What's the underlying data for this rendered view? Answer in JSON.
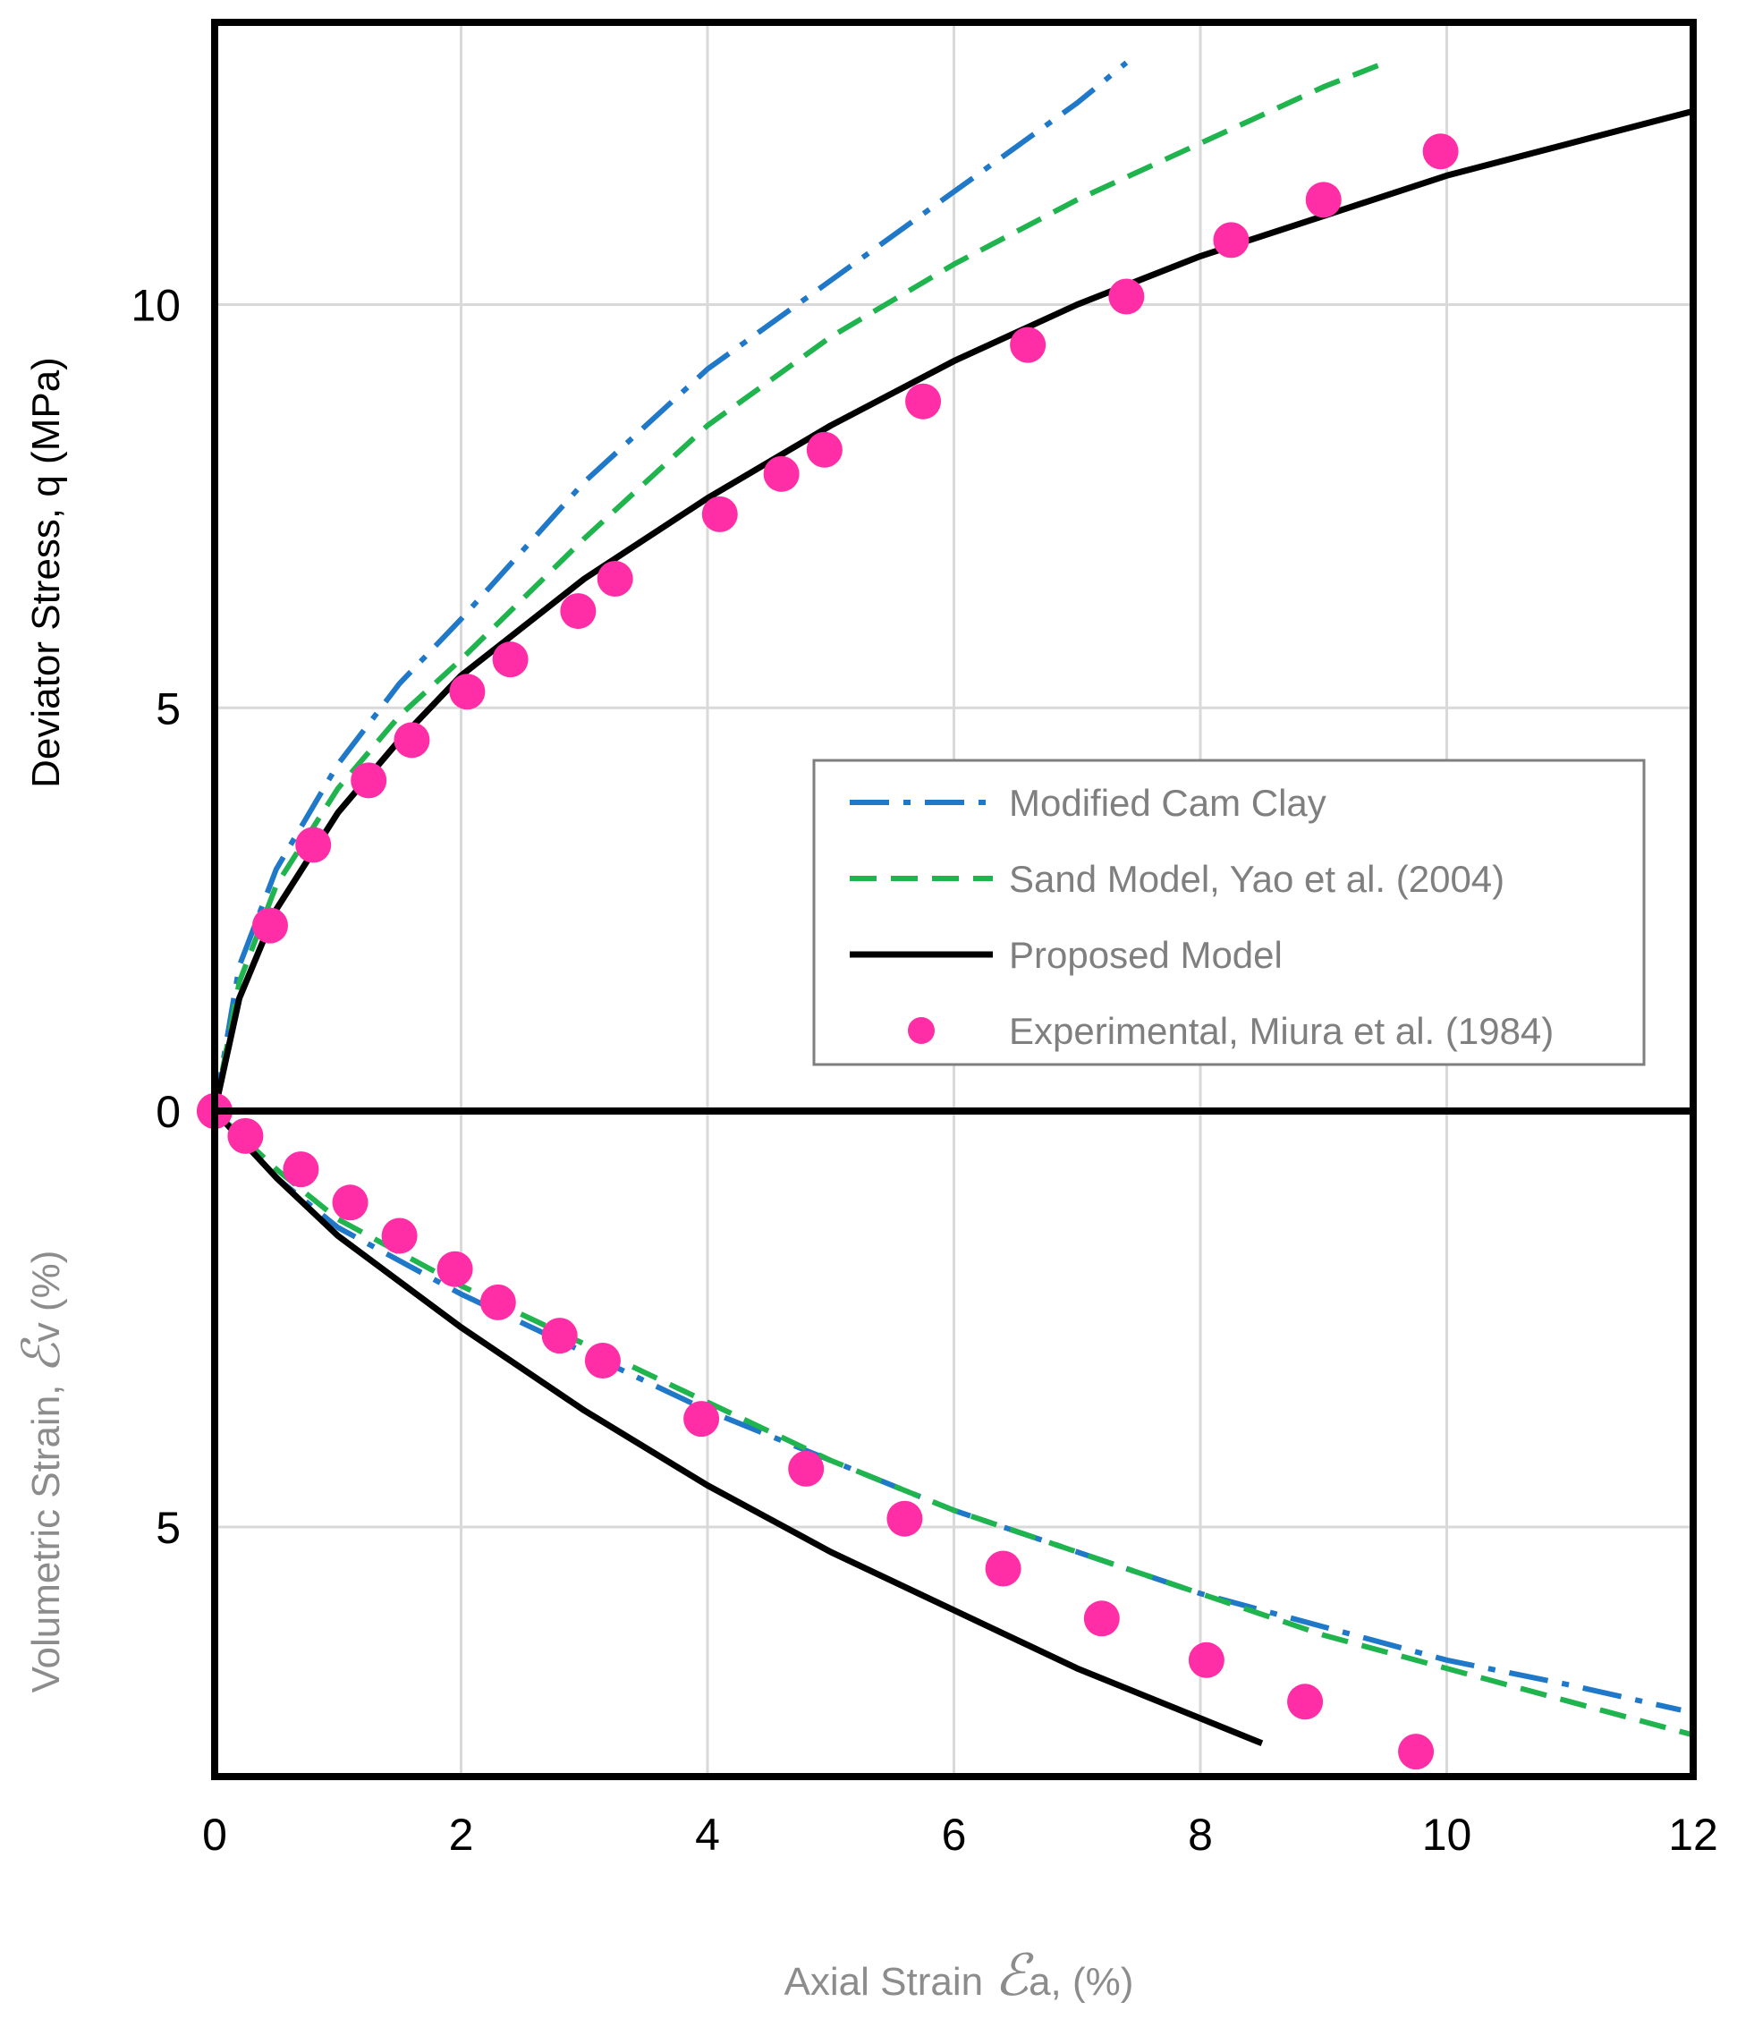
{
  "chart_data": {
    "type": "line",
    "title": "",
    "xlabel_prefix": "Axial Strain ",
    "xlabel_symbol": "ℰ",
    "xlabel_suffix": "a, (%)",
    "ylabel_top": "Deviator Stress, q (MPa)",
    "ylabel_bottom_prefix": "Volumetric Strain, ",
    "ylabel_bottom_symbol": "ℰ",
    "ylabel_bottom_suffix": "v (%)",
    "xlim": [
      0,
      12
    ],
    "top_ylim": [
      0,
      13.5
    ],
    "bottom_ylim": [
      0,
      8
    ],
    "grid": true,
    "legend_position": "center-right",
    "x_ticks": [
      "0",
      "2",
      "4",
      "6",
      "8",
      "10",
      "12"
    ],
    "x_tick_values": [
      0,
      2,
      4,
      6,
      8,
      10,
      12
    ],
    "top_y_ticks": [
      "0",
      "5",
      "10"
    ],
    "top_y_tick_values": [
      0,
      5,
      10
    ],
    "bottom_y_ticks": [
      "5"
    ],
    "bottom_y_tick_values": [
      5
    ],
    "colors": {
      "mcc": "#1f78c8",
      "sand": "#1fb44e",
      "proposed": "#000000",
      "experimental": "#ff2ea6",
      "grid": "#d9d9d9",
      "axis": "#000000",
      "label_gray": "#8c8c8c"
    },
    "legend": [
      {
        "key": "mcc",
        "label": "Modified Cam Clay",
        "style": "dash-dot"
      },
      {
        "key": "sand",
        "label": "Sand Model, Yao et al. (2004)",
        "style": "dashed"
      },
      {
        "key": "proposed",
        "label": "Proposed Model",
        "style": "solid"
      },
      {
        "key": "experimental",
        "label": "Experimental, Miura et al. (1984)",
        "style": "marker"
      }
    ],
    "deviator_stress": {
      "series": [
        {
          "key": "mcc",
          "name": "Modified Cam Clay",
          "x": [
            0,
            0.2,
            0.5,
            1.0,
            1.5,
            2.0,
            3.0,
            4.0,
            5.0,
            6.0,
            7.0,
            7.4
          ],
          "y": [
            0,
            1.8,
            3.0,
            4.3,
            5.3,
            6.1,
            7.8,
            9.2,
            10.3,
            11.4,
            12.5,
            13.0
          ]
        },
        {
          "key": "sand",
          "name": "Sand Model, Yao et al. (2004)",
          "x": [
            0,
            0.2,
            0.5,
            1.0,
            1.5,
            2.0,
            3.0,
            4.0,
            5.0,
            6.0,
            7.0,
            8.0,
            9.0,
            9.5
          ],
          "y": [
            0,
            1.6,
            2.8,
            4.0,
            4.9,
            5.6,
            7.1,
            8.5,
            9.6,
            10.5,
            11.3,
            12.0,
            12.7,
            13.0
          ]
        },
        {
          "key": "proposed",
          "name": "Proposed Model",
          "x": [
            0,
            0.2,
            0.5,
            1.0,
            1.5,
            2.0,
            3.0,
            4.0,
            5.0,
            6.0,
            7.0,
            8.0,
            9.0,
            10.0,
            11.0,
            12.0
          ],
          "y": [
            0,
            1.4,
            2.5,
            3.7,
            4.6,
            5.4,
            6.6,
            7.6,
            8.5,
            9.3,
            10.0,
            10.6,
            11.1,
            11.6,
            12.0,
            12.4
          ]
        }
      ],
      "experimental": {
        "x": [
          0,
          0.45,
          0.8,
          1.25,
          1.6,
          2.05,
          2.4,
          2.95,
          3.25,
          4.1,
          4.6,
          4.95,
          5.75,
          6.6,
          7.4,
          8.25,
          9.0,
          9.95
        ],
        "y": [
          0,
          2.3,
          3.3,
          4.1,
          4.6,
          5.2,
          5.6,
          6.2,
          6.6,
          7.4,
          7.9,
          8.2,
          8.8,
          9.5,
          10.1,
          10.8,
          11.3,
          11.9
        ]
      }
    },
    "volumetric_strain": {
      "series": [
        {
          "key": "mcc",
          "name": "Modified Cam Clay",
          "x": [
            0,
            0.5,
            1.0,
            2.0,
            3.0,
            4.0,
            5.0,
            6.0,
            7.0,
            8.0,
            9.0,
            10.0,
            11.0,
            11.9
          ],
          "y": [
            0,
            0.8,
            1.4,
            2.2,
            2.9,
            3.6,
            4.2,
            4.8,
            5.3,
            5.8,
            6.2,
            6.6,
            6.9,
            7.2
          ]
        },
        {
          "key": "sand",
          "name": "Sand Model, Yao et al. (2004)",
          "x": [
            0,
            0.5,
            1.0,
            2.0,
            3.0,
            4.0,
            5.0,
            6.0,
            7.0,
            8.0,
            9.0,
            10.0,
            11.0,
            12.0
          ],
          "y": [
            0,
            0.7,
            1.3,
            2.1,
            2.8,
            3.5,
            4.2,
            4.8,
            5.3,
            5.8,
            6.3,
            6.7,
            7.1,
            7.5
          ]
        },
        {
          "key": "proposed",
          "name": "Proposed Model",
          "x": [
            0,
            0.5,
            1.0,
            2.0,
            3.0,
            4.0,
            5.0,
            6.0,
            7.0,
            8.0,
            8.5
          ],
          "y": [
            0,
            0.8,
            1.5,
            2.6,
            3.6,
            4.5,
            5.3,
            6.0,
            6.7,
            7.3,
            7.6
          ]
        }
      ],
      "experimental": {
        "x": [
          0,
          0.25,
          0.7,
          1.1,
          1.5,
          1.95,
          2.3,
          2.8,
          3.15,
          3.95,
          4.8,
          5.6,
          6.4,
          7.2,
          8.05,
          8.85,
          9.75
        ],
        "y": [
          0,
          0.3,
          0.7,
          1.1,
          1.5,
          1.9,
          2.3,
          2.7,
          3.0,
          3.7,
          4.3,
          4.9,
          5.5,
          6.1,
          6.6,
          7.1,
          7.7
        ]
      }
    }
  }
}
